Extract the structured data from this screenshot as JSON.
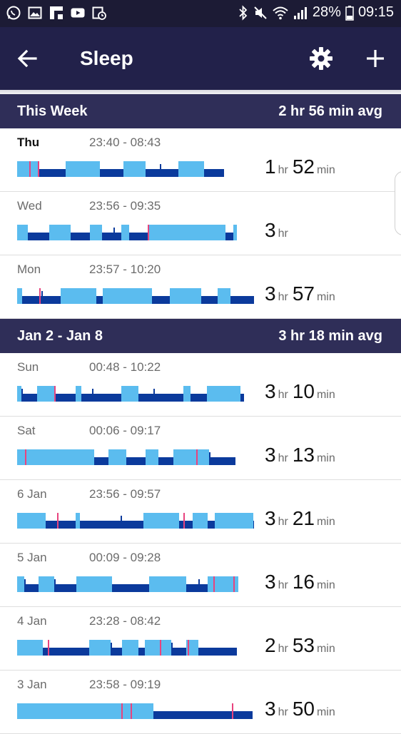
{
  "status_bar": {
    "battery": "28%",
    "time": "09:15",
    "left_icons": [
      "whatsapp-icon",
      "gallery-icon",
      "flipboard-icon",
      "youtube-icon",
      "calendar-clock-icon"
    ],
    "right_icons": [
      "bluetooth-icon",
      "mute-icon",
      "wifi-icon",
      "signal-icon",
      "battery-icon"
    ]
  },
  "app_bar": {
    "title": "Sleep",
    "back_icon": "arrow-left-icon",
    "settings_icon": "gear-icon",
    "add_icon": "plus-icon"
  },
  "colors": {
    "status_bar": "#1c1b35",
    "app_bar": "#22214a",
    "section_header": "#2f2e58",
    "light_sleep": "#5bbcef",
    "deep_sleep": "#0b3a9c",
    "awake": "#e8437e"
  },
  "sections": [
    {
      "title": "This Week",
      "avg": "2 hr 56 min avg",
      "rows": [
        {
          "day": "Thu",
          "time": "23:40 - 08:43",
          "hours": "1",
          "hr_unit": "hr",
          "minutes": "52",
          "min_unit": "min",
          "highlight": true
        },
        {
          "day": "Wed",
          "time": "23:56 - 09:35",
          "hours": "3",
          "hr_unit": "hr",
          "minutes": "",
          "min_unit": ""
        },
        {
          "day": "Mon",
          "time": "23:57 - 10:20",
          "hours": "3",
          "hr_unit": "hr",
          "minutes": "57",
          "min_unit": "min"
        }
      ]
    },
    {
      "title": "Jan 2 - Jan 8",
      "avg": "3 hr 18 min avg",
      "rows": [
        {
          "day": "Sun",
          "time": "00:48 - 10:22",
          "hours": "3",
          "hr_unit": "hr",
          "minutes": "10",
          "min_unit": "min"
        },
        {
          "day": "Sat",
          "time": "00:06 - 09:17",
          "hours": "3",
          "hr_unit": "hr",
          "minutes": "13",
          "min_unit": "min"
        },
        {
          "day": "6 Jan",
          "time": "23:56 - 09:57",
          "hours": "3",
          "hr_unit": "hr",
          "minutes": "21",
          "min_unit": "min"
        },
        {
          "day": "5 Jan",
          "time": "00:09 - 09:28",
          "hours": "3",
          "hr_unit": "hr",
          "minutes": "16",
          "min_unit": "min"
        },
        {
          "day": "4 Jan",
          "time": "23:28 - 08:42",
          "hours": "2",
          "hr_unit": "hr",
          "minutes": "53",
          "min_unit": "min"
        },
        {
          "day": "3 Jan",
          "time": "23:58 - 09:19",
          "hours": "3",
          "hr_unit": "hr",
          "minutes": "50",
          "min_unit": "min"
        }
      ]
    }
  ]
}
